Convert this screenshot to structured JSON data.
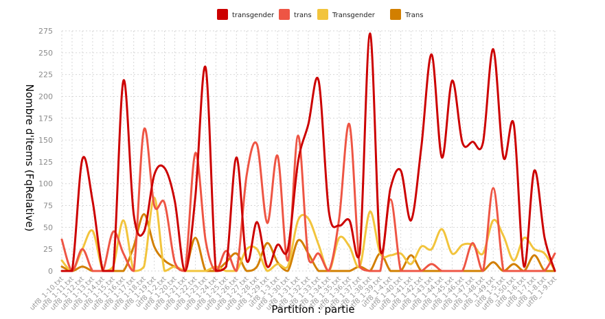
{
  "chart_data": {
    "type": "line",
    "xlabel": "Partition : partie",
    "ylabel": "Nombre d'items (FqRelative)",
    "ylim": [
      0,
      275
    ],
    "yticks": [
      0,
      25,
      50,
      75,
      100,
      125,
      150,
      175,
      200,
      225,
      250,
      275
    ],
    "grid": true,
    "legend_position": "top-center",
    "smooth": true,
    "categories": [
      "utf8_1-10.txt",
      "utf8_1-11.txt",
      "utf8_1-12.txt",
      "utf8_1-13.txt",
      "utf8_1-14.txt",
      "utf8_1-15.txt",
      "utf8_1-16.txt",
      "utf8_1-17.txt",
      "utf8_1-18.txt",
      "utf8_1-19.txt",
      "utf8_1-2.txt",
      "utf8_1-20.txt",
      "utf8_1-21.txt",
      "utf8_1-22.txt",
      "utf8_1-23.txt",
      "utf8_1-24.txt",
      "utf8_1-25.txt",
      "utf8_1-26.txt",
      "utf8_1-27.txt",
      "utf8_1-28.txt",
      "utf8_1-29.txt",
      "utf8_1-3.txt",
      "utf8_1-30.txt",
      "utf8_1-31.txt",
      "utf8_1-32.txt",
      "utf8_1-33.txt",
      "utf8_1-34.txt",
      "utf8_1-35.txt",
      "utf8_1-36.txt",
      "utf8_1-37.txt",
      "utf8_1-38.txt",
      "utf8_1-39.txt",
      "utf8_1-4.txt",
      "utf8_1-40.txt",
      "utf8_1-41.txt",
      "utf8_1-42.txt",
      "utf8_1-43.txt",
      "utf8_1-44.txt",
      "utf8_1-45.txt",
      "utf8_1-46.txt",
      "utf8_1-47.txt",
      "utf8_1-48.txt",
      "utf8_1-49.txt",
      "utf8_1-5.txt",
      "utf8_1-50.txt",
      "utf8_1-6.txt",
      "utf8_1-7.txt",
      "utf8_1-8.txt",
      "utf8_1-9.txt"
    ],
    "series": [
      {
        "name": "transgender",
        "color": "#cc0000",
        "width": 3,
        "values": [
          0,
          0,
          128,
          80,
          0,
          0,
          218,
          65,
          45,
          110,
          118,
          80,
          0,
          85,
          233,
          0,
          5,
          130,
          12,
          56,
          5,
          30,
          25,
          125,
          168,
          218,
          68,
          52,
          58,
          20,
          272,
          25,
          95,
          115,
          58,
          142,
          248,
          130,
          218,
          147,
          148,
          147,
          254,
          130,
          168,
          5,
          115,
          38,
          0
        ]
      },
      {
        "name": "trans",
        "color": "#ee5544",
        "width": 3,
        "values": [
          36,
          0,
          25,
          0,
          0,
          45,
          20,
          0,
          162,
          75,
          78,
          10,
          0,
          135,
          35,
          0,
          23,
          0,
          110,
          145,
          55,
          132,
          12,
          155,
          15,
          20,
          0,
          60,
          168,
          5,
          0,
          0,
          82,
          0,
          0,
          0,
          8,
          0,
          0,
          0,
          32,
          0,
          95,
          0,
          0,
          0,
          0,
          0,
          20
        ]
      },
      {
        "name": "Transgender",
        "color": "#f2c43c",
        "width": 3,
        "values": [
          12,
          0,
          25,
          46,
          0,
          5,
          58,
          0,
          5,
          84,
          0,
          5,
          0,
          0,
          0,
          5,
          0,
          0,
          25,
          25,
          0,
          8,
          5,
          58,
          60,
          30,
          0,
          38,
          28,
          5,
          68,
          20,
          18,
          20,
          8,
          28,
          25,
          48,
          20,
          30,
          30,
          20,
          58,
          40,
          12,
          38,
          25,
          20,
          0
        ]
      },
      {
        "name": "Trans",
        "color": "#d27f00",
        "width": 3,
        "values": [
          5,
          0,
          5,
          0,
          0,
          0,
          0,
          28,
          65,
          28,
          12,
          5,
          0,
          38,
          0,
          0,
          10,
          20,
          0,
          5,
          32,
          10,
          0,
          35,
          20,
          0,
          0,
          0,
          0,
          5,
          0,
          20,
          0,
          0,
          18,
          0,
          0,
          0,
          0,
          0,
          0,
          0,
          10,
          0,
          8,
          0,
          18,
          0,
          0
        ]
      }
    ]
  }
}
